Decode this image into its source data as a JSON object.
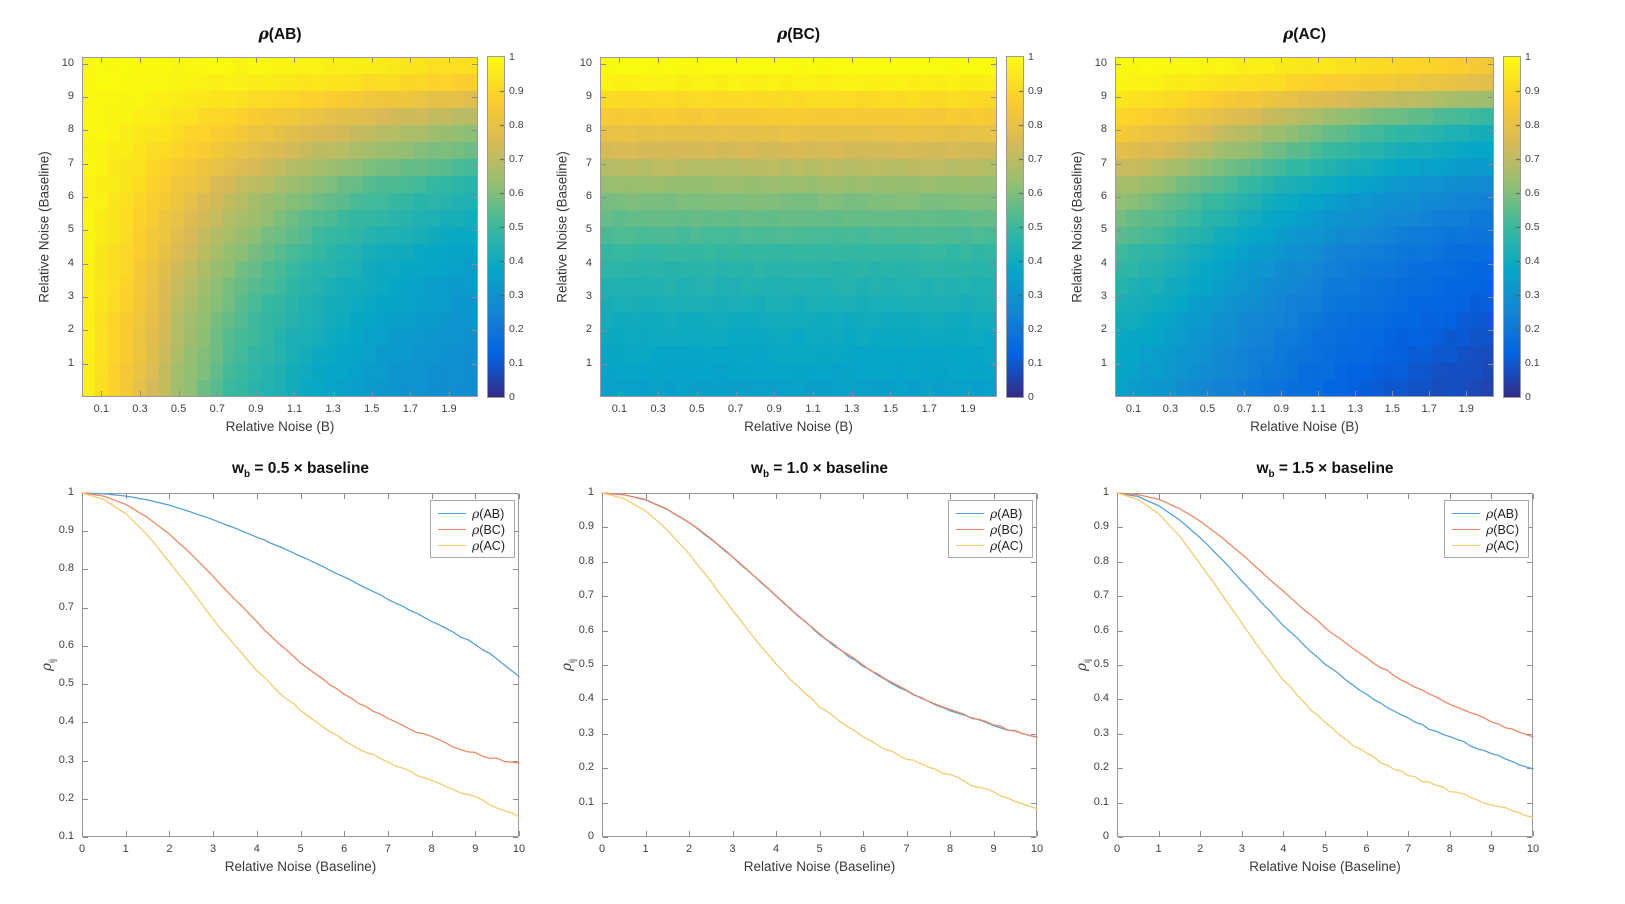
{
  "palette": {
    "background": "#ffffff",
    "axis_color": "#9b9b9b",
    "tick_color": "#8c8c8c",
    "text_color": "#404040",
    "title_color": "#111111",
    "colormap": "parula",
    "series_colors": {
      "AB": "#58a1d6",
      "BC": "#ec8a66",
      "AC": "#f4cc70"
    }
  },
  "chart_data": [
    {
      "id": "heatmap-rho-AB",
      "type": "heatmap",
      "title": {
        "pre": "ρ",
        "post": "(AB)"
      },
      "xlabel": "Relative Noise (B)",
      "ylabel": "Relative Noise (Baseline)",
      "xlim": [
        0,
        2.05
      ],
      "ylim": [
        0,
        10.2
      ],
      "xtick_values": [
        0.1,
        0.3,
        0.5,
        0.7,
        0.9,
        1.1,
        1.3,
        1.5,
        1.7,
        1.9
      ],
      "xtick_labels": [
        "0.1",
        "0.3",
        "0.5",
        "0.7",
        "0.9",
        "1.1",
        "1.3",
        "1.5",
        "1.7",
        "1.9"
      ],
      "ytick_values": [
        1,
        2,
        3,
        4,
        5,
        6,
        7,
        8,
        9,
        10
      ],
      "ytick_labels": [
        "1",
        "2",
        "3",
        "4",
        "5",
        "6",
        "7",
        "8",
        "9",
        "10"
      ],
      "colorbar": {
        "min": 0,
        "max": 1,
        "tick_labels": [
          "1",
          "0.9",
          "0.8",
          "0.7",
          "0.6",
          "0.5",
          "0.4",
          "0.3",
          "0.2",
          "0.1",
          "0"
        ]
      },
      "grid_x": [
        0,
        0.25,
        0.5,
        0.75,
        1.0,
        1.25,
        1.5,
        1.75,
        2.0
      ],
      "grid_y": [
        0.5,
        2,
        4,
        6,
        8,
        10
      ],
      "values": [
        [
          1.0,
          1.0,
          0.99,
          0.99,
          0.98,
          0.97,
          0.96,
          0.94,
          0.92
        ],
        [
          1.0,
          0.97,
          0.93,
          0.88,
          0.83,
          0.78,
          0.73,
          0.69,
          0.65
        ],
        [
          0.99,
          0.93,
          0.83,
          0.73,
          0.65,
          0.58,
          0.53,
          0.49,
          0.45
        ],
        [
          0.99,
          0.89,
          0.75,
          0.63,
          0.54,
          0.47,
          0.42,
          0.38,
          0.35
        ],
        [
          0.98,
          0.86,
          0.69,
          0.56,
          0.47,
          0.41,
          0.36,
          0.33,
          0.3
        ],
        [
          0.98,
          0.83,
          0.65,
          0.51,
          0.43,
          0.37,
          0.32,
          0.29,
          0.27
        ]
      ]
    },
    {
      "id": "heatmap-rho-BC",
      "type": "heatmap",
      "title": {
        "pre": "ρ",
        "post": "(BC)"
      },
      "xlabel": "Relative Noise (B)",
      "ylabel": "Relative Noise (Baseline)",
      "xlim": [
        0,
        2.05
      ],
      "ylim": [
        0,
        10.2
      ],
      "xtick_values": [
        0.1,
        0.3,
        0.5,
        0.7,
        0.9,
        1.1,
        1.3,
        1.5,
        1.7,
        1.9
      ],
      "xtick_labels": [
        "0.1",
        "0.3",
        "0.5",
        "0.7",
        "0.9",
        "1.1",
        "1.3",
        "1.5",
        "1.7",
        "1.9"
      ],
      "ytick_values": [
        1,
        2,
        3,
        4,
        5,
        6,
        7,
        8,
        9,
        10
      ],
      "ytick_labels": [
        "1",
        "2",
        "3",
        "4",
        "5",
        "6",
        "7",
        "8",
        "9",
        "10"
      ],
      "colorbar": {
        "min": 0,
        "max": 1,
        "tick_labels": [
          "1",
          "0.9",
          "0.8",
          "0.7",
          "0.6",
          "0.5",
          "0.4",
          "0.3",
          "0.2",
          "0.1",
          "0"
        ]
      },
      "grid_x": [
        0,
        0.25,
        0.5,
        0.75,
        1.0,
        1.25,
        1.5,
        1.75,
        2.0
      ],
      "grid_y": [
        0.5,
        2,
        4,
        6,
        8,
        10
      ],
      "values": [
        [
          1.0,
          1.0,
          1.0,
          1.0,
          1.0,
          1.0,
          1.0,
          1.0,
          1.0
        ],
        [
          0.83,
          0.83,
          0.83,
          0.83,
          0.83,
          0.83,
          0.83,
          0.83,
          0.83
        ],
        [
          0.62,
          0.62,
          0.62,
          0.62,
          0.62,
          0.62,
          0.62,
          0.62,
          0.62
        ],
        [
          0.48,
          0.48,
          0.48,
          0.48,
          0.48,
          0.48,
          0.48,
          0.48,
          0.48
        ],
        [
          0.4,
          0.4,
          0.4,
          0.4,
          0.4,
          0.4,
          0.4,
          0.4,
          0.4
        ],
        [
          0.35,
          0.35,
          0.35,
          0.35,
          0.35,
          0.35,
          0.35,
          0.35,
          0.35
        ]
      ]
    },
    {
      "id": "heatmap-rho-AC",
      "type": "heatmap",
      "title": {
        "pre": "ρ",
        "post": "(AC)"
      },
      "xlabel": "Relative Noise (B)",
      "ylabel": "Relative Noise (Baseline)",
      "xlim": [
        0,
        2.05
      ],
      "ylim": [
        0,
        10.2
      ],
      "xtick_values": [
        0.1,
        0.3,
        0.5,
        0.7,
        0.9,
        1.1,
        1.3,
        1.5,
        1.7,
        1.9
      ],
      "xtick_labels": [
        "0.1",
        "0.3",
        "0.5",
        "0.7",
        "0.9",
        "1.1",
        "1.3",
        "1.5",
        "1.7",
        "1.9"
      ],
      "ytick_values": [
        1,
        2,
        3,
        4,
        5,
        6,
        7,
        8,
        9,
        10
      ],
      "ytick_labels": [
        "1",
        "2",
        "3",
        "4",
        "5",
        "6",
        "7",
        "8",
        "9",
        "10"
      ],
      "colorbar": {
        "min": 0,
        "max": 1,
        "tick_labels": [
          "1",
          "0.9",
          "0.8",
          "0.7",
          "0.6",
          "0.5",
          "0.4",
          "0.3",
          "0.2",
          "0.1",
          "0"
        ]
      },
      "grid_x": [
        0,
        0.25,
        0.5,
        0.75,
        1.0,
        1.25,
        1.5,
        1.75,
        2.0
      ],
      "grid_y": [
        0.5,
        2,
        4,
        6,
        8,
        10
      ],
      "values": [
        [
          1.0,
          0.99,
          0.98,
          0.97,
          0.95,
          0.93,
          0.91,
          0.88,
          0.85
        ],
        [
          0.89,
          0.85,
          0.78,
          0.71,
          0.64,
          0.58,
          0.52,
          0.48,
          0.44
        ],
        [
          0.65,
          0.6,
          0.53,
          0.46,
          0.4,
          0.35,
          0.31,
          0.28,
          0.25
        ],
        [
          0.5,
          0.46,
          0.39,
          0.33,
          0.28,
          0.23,
          0.2,
          0.17,
          0.15
        ],
        [
          0.41,
          0.37,
          0.31,
          0.26,
          0.21,
          0.17,
          0.14,
          0.12,
          0.1
        ],
        [
          0.35,
          0.31,
          0.26,
          0.21,
          0.16,
          0.13,
          0.1,
          0.08,
          0.06
        ]
      ]
    },
    {
      "id": "line-wb-0.5",
      "type": "line",
      "title": {
        "pre": "w",
        "sub": "b",
        "post": " = 0.5 × baseline"
      },
      "xlabel": "Relative Noise (Baseline)",
      "ylabel": {
        "pre": "ρ",
        "sub": "ij"
      },
      "xlim": [
        0,
        10
      ],
      "ylim": [
        0.1,
        1
      ],
      "xtick_values": [
        0,
        1,
        2,
        3,
        4,
        5,
        6,
        7,
        8,
        9,
        10
      ],
      "xtick_labels": [
        "0",
        "1",
        "2",
        "3",
        "4",
        "5",
        "6",
        "7",
        "8",
        "9",
        "10"
      ],
      "ytick_values": [
        0.1,
        0.2,
        0.3,
        0.4,
        0.5,
        0.6,
        0.7,
        0.8,
        0.9,
        1
      ],
      "ytick_labels": [
        "0.1",
        "0.2",
        "0.3",
        "0.4",
        "0.5",
        "0.6",
        "0.7",
        "0.8",
        "0.9",
        "1"
      ],
      "legend_position": "top-right",
      "x_values": [
        0,
        0.5,
        1,
        1.5,
        2,
        2.5,
        3,
        3.5,
        4,
        4.5,
        5,
        5.5,
        6,
        6.5,
        7,
        7.5,
        8,
        8.5,
        9,
        9.5,
        10
      ],
      "series": [
        {
          "name": "ρ(AB)",
          "key": "AB",
          "values": [
            1.0,
            0.998,
            0.992,
            0.982,
            0.968,
            0.95,
            0.93,
            0.908,
            0.885,
            0.86,
            0.835,
            0.808,
            0.78,
            0.752,
            0.723,
            0.694,
            0.664,
            0.634,
            0.605,
            0.565,
            0.52
          ]
        },
        {
          "name": "ρ(BC)",
          "key": "BC",
          "values": [
            1.0,
            0.992,
            0.97,
            0.936,
            0.892,
            0.84,
            0.782,
            0.722,
            0.662,
            0.607,
            0.557,
            0.513,
            0.474,
            0.44,
            0.41,
            0.384,
            0.36,
            0.338,
            0.318,
            0.304,
            0.293
          ]
        },
        {
          "name": "ρ(AC)",
          "key": "AC",
          "values": [
            1.0,
            0.983,
            0.946,
            0.89,
            0.82,
            0.745,
            0.67,
            0.6,
            0.535,
            0.48,
            0.432,
            0.39,
            0.354,
            0.322,
            0.295,
            0.27,
            0.247,
            0.225,
            0.205,
            0.178,
            0.152
          ]
        }
      ]
    },
    {
      "id": "line-wb-1.0",
      "type": "line",
      "title": {
        "pre": "w",
        "sub": "b",
        "post": " = 1.0 × baseline"
      },
      "xlabel": "Relative Noise (Baseline)",
      "ylabel": {
        "pre": "ρ",
        "sub": "ij"
      },
      "xlim": [
        0,
        10
      ],
      "ylim": [
        0,
        1
      ],
      "xtick_values": [
        0,
        1,
        2,
        3,
        4,
        5,
        6,
        7,
        8,
        9,
        10
      ],
      "xtick_labels": [
        "0",
        "1",
        "2",
        "3",
        "4",
        "5",
        "6",
        "7",
        "8",
        "9",
        "10"
      ],
      "ytick_values": [
        0,
        0.1,
        0.2,
        0.3,
        0.4,
        0.5,
        0.6,
        0.7,
        0.8,
        0.9,
        1
      ],
      "ytick_labels": [
        "0",
        "0.1",
        "0.2",
        "0.3",
        "0.4",
        "0.5",
        "0.6",
        "0.7",
        "0.8",
        "0.9",
        "1"
      ],
      "legend_position": "top-right",
      "x_values": [
        0,
        0.5,
        1,
        1.5,
        2,
        2.5,
        3,
        3.5,
        4,
        4.5,
        5,
        5.5,
        6,
        6.5,
        7,
        7.5,
        8,
        8.5,
        9,
        9.5,
        10
      ],
      "series": [
        {
          "name": "ρ(AB)",
          "key": "AB",
          "values": [
            1.0,
            0.995,
            0.98,
            0.952,
            0.914,
            0.866,
            0.814,
            0.757,
            0.7,
            0.644,
            0.59,
            0.541,
            0.497,
            0.459,
            0.425,
            0.395,
            0.369,
            0.346,
            0.325,
            0.306,
            0.29
          ]
        },
        {
          "name": "ρ(BC)",
          "key": "BC",
          "values": [
            1.0,
            0.995,
            0.981,
            0.953,
            0.915,
            0.868,
            0.815,
            0.759,
            0.701,
            0.645,
            0.592,
            0.543,
            0.499,
            0.46,
            0.426,
            0.396,
            0.37,
            0.347,
            0.326,
            0.307,
            0.291
          ]
        },
        {
          "name": "ρ(AC)",
          "key": "AC",
          "values": [
            1.0,
            0.984,
            0.948,
            0.893,
            0.823,
            0.743,
            0.66,
            0.578,
            0.503,
            0.437,
            0.38,
            0.332,
            0.291,
            0.257,
            0.228,
            0.203,
            0.182,
            0.152,
            0.13,
            0.1,
            0.082
          ]
        }
      ]
    },
    {
      "id": "line-wb-1.5",
      "type": "line",
      "title": {
        "pre": "w",
        "sub": "b",
        "post": " = 1.5 × baseline"
      },
      "xlabel": "Relative Noise (Baseline)",
      "ylabel": {
        "pre": "ρ",
        "sub": "ij"
      },
      "xlim": [
        0,
        10
      ],
      "ylim": [
        0,
        1
      ],
      "xtick_values": [
        0,
        1,
        2,
        3,
        4,
        5,
        6,
        7,
        8,
        9,
        10
      ],
      "xtick_labels": [
        "0",
        "1",
        "2",
        "3",
        "4",
        "5",
        "6",
        "7",
        "8",
        "9",
        "10"
      ],
      "ytick_values": [
        0,
        0.1,
        0.2,
        0.3,
        0.4,
        0.5,
        0.6,
        0.7,
        0.8,
        0.9,
        1
      ],
      "ytick_labels": [
        "0",
        "0.1",
        "0.2",
        "0.3",
        "0.4",
        "0.5",
        "0.6",
        "0.7",
        "0.8",
        "0.9",
        "1"
      ],
      "legend_position": "top-right",
      "x_values": [
        0,
        0.5,
        1,
        1.5,
        2,
        2.5,
        3,
        3.5,
        4,
        4.5,
        5,
        5.5,
        6,
        6.5,
        7,
        7.5,
        8,
        8.5,
        9,
        9.5,
        10
      ],
      "series": [
        {
          "name": "ρ(AB)",
          "key": "AB",
          "values": [
            1.0,
            0.99,
            0.963,
            0.922,
            0.87,
            0.81,
            0.745,
            0.678,
            0.615,
            0.557,
            0.504,
            0.457,
            0.415,
            0.378,
            0.345,
            0.316,
            0.29,
            0.267,
            0.242,
            0.219,
            0.198
          ]
        },
        {
          "name": "ρ(BC)",
          "key": "BC",
          "values": [
            1.0,
            0.995,
            0.982,
            0.955,
            0.918,
            0.872,
            0.822,
            0.768,
            0.713,
            0.66,
            0.61,
            0.563,
            0.52,
            0.482,
            0.447,
            0.415,
            0.387,
            0.361,
            0.337,
            0.312,
            0.291
          ]
        },
        {
          "name": "ρ(AC)",
          "key": "AC",
          "values": [
            1.0,
            0.982,
            0.94,
            0.875,
            0.795,
            0.708,
            0.62,
            0.535,
            0.458,
            0.39,
            0.332,
            0.283,
            0.242,
            0.208,
            0.18,
            0.156,
            0.135,
            0.115,
            0.095,
            0.075,
            0.058
          ]
        }
      ]
    }
  ]
}
